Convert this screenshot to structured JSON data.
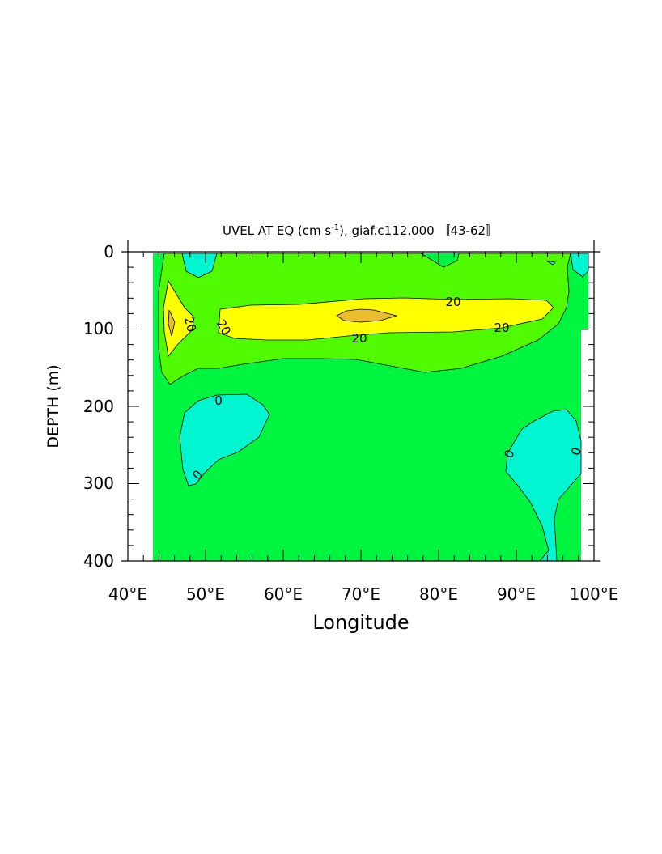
{
  "chart_data": {
    "type": "contour",
    "title_prefix": "UVEL AT EQ (cm s",
    "title_sup": "-1",
    "title_suffix": "), giaf.c112.000 〚43-62〛",
    "xlabel": "Longitude",
    "ylabel": "DEPTH (m)",
    "xlim": [
      40,
      100
    ],
    "ylim": [
      0,
      400
    ],
    "y_inverted": true,
    "x_ticks": [
      "40°E",
      "50°E",
      "60°E",
      "70°E",
      "80°E",
      "90°E",
      "100°E"
    ],
    "x_tick_values": [
      40,
      50,
      60,
      70,
      80,
      90,
      100
    ],
    "y_ticks": [
      "0",
      "100",
      "200",
      "300",
      "400"
    ],
    "y_tick_values": [
      0,
      100,
      200,
      300,
      400
    ],
    "contour_interval": 20,
    "contour_labels": [
      "20",
      "20",
      "20",
      "20",
      "20",
      "0",
      "0",
      "0",
      "0"
    ],
    "levels": [
      {
        "range": "< 0",
        "color": "#00f5d0"
      },
      {
        "range": "0 to 20",
        "color": "#00f541"
      },
      {
        "range": "20 to 40",
        "color": "#50fa00"
      },
      {
        "range": "40 to 60",
        "color": "#ffff00"
      },
      {
        "range": "> 60",
        "color": "#ecbe2d"
      }
    ],
    "grid": false,
    "legend": "none"
  }
}
